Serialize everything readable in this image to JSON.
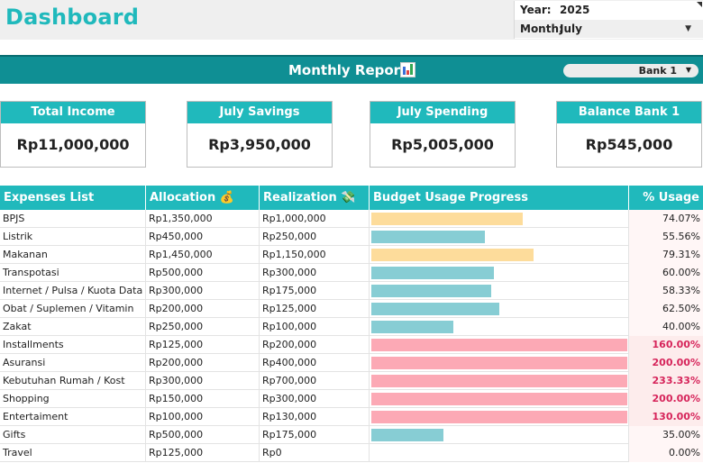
{
  "header": {
    "title": "Dashboard",
    "year_label": "Year:",
    "year_value": "2025",
    "month_label": "Month:",
    "month_value": "July"
  },
  "report": {
    "title": "Monthly Report",
    "bank_select": "Bank 1"
  },
  "cards": [
    {
      "label": "Total Income",
      "value": "Rp11,000,000"
    },
    {
      "label": "July Savings",
      "value": "Rp3,950,000"
    },
    {
      "label": "July Spending",
      "value": "Rp5,005,000"
    },
    {
      "label": "Balance Bank 1",
      "value": "Rp545,000"
    }
  ],
  "table": {
    "headers": {
      "list": "Expenses List",
      "allocation": "Allocation 💰",
      "realization": "Realization 💸",
      "progress": "Budget Usage Progress",
      "usage": "% Usage"
    },
    "rows": [
      {
        "name": "BPJS",
        "allocation": "Rp1,350,000",
        "realization": "Rp1,000,000",
        "usage": "74.07%",
        "pct": 74.07
      },
      {
        "name": "Listrik",
        "allocation": "Rp450,000",
        "realization": "Rp250,000",
        "usage": "55.56%",
        "pct": 55.56
      },
      {
        "name": "Makanan",
        "allocation": "Rp1,450,000",
        "realization": "Rp1,150,000",
        "usage": "79.31%",
        "pct": 79.31
      },
      {
        "name": "Transpotasi",
        "allocation": "Rp500,000",
        "realization": "Rp300,000",
        "usage": "60.00%",
        "pct": 60.0
      },
      {
        "name": "Internet / Pulsa / Kuota Data",
        "allocation": "Rp300,000",
        "realization": "Rp175,000",
        "usage": "58.33%",
        "pct": 58.33
      },
      {
        "name": "Obat / Suplemen / Vitamin",
        "allocation": "Rp200,000",
        "realization": "Rp125,000",
        "usage": "62.50%",
        "pct": 62.5
      },
      {
        "name": "Zakat",
        "allocation": "Rp250,000",
        "realization": "Rp100,000",
        "usage": "40.00%",
        "pct": 40.0
      },
      {
        "name": "Installments",
        "allocation": "Rp125,000",
        "realization": "Rp200,000",
        "usage": "160.00%",
        "pct": 160.0
      },
      {
        "name": "Asuransi",
        "allocation": "Rp200,000",
        "realization": "Rp400,000",
        "usage": "200.00%",
        "pct": 200.0
      },
      {
        "name": "Kebutuhan Rumah / Kost",
        "allocation": "Rp300,000",
        "realization": "Rp700,000",
        "usage": "233.33%",
        "pct": 233.33
      },
      {
        "name": "Shopping",
        "allocation": "Rp150,000",
        "realization": "Rp300,000",
        "usage": "200.00%",
        "pct": 200.0
      },
      {
        "name": "Entertaiment",
        "allocation": "Rp100,000",
        "realization": "Rp130,000",
        "usage": "130.00%",
        "pct": 130.0
      },
      {
        "name": "Gifts",
        "allocation": "Rp500,000",
        "realization": "Rp175,000",
        "usage": "35.00%",
        "pct": 35.0
      },
      {
        "name": "Travel",
        "allocation": "Rp125,000",
        "realization": "Rp0",
        "usage": "0.00%",
        "pct": 0.0
      }
    ]
  },
  "colors": {
    "accent": "#20b9bc",
    "report_bar": "#0f8f94",
    "bar_normal": "#87cdd4",
    "bar_warning": "#fddc9b",
    "bar_over": "#fca9b5",
    "over_text": "#d6245a",
    "over_bg": "#fdecec",
    "usage_bg": "#fff6f6"
  },
  "icons": {
    "chart": "bar-chart-icon",
    "dropdown": "chevron-down-icon"
  }
}
